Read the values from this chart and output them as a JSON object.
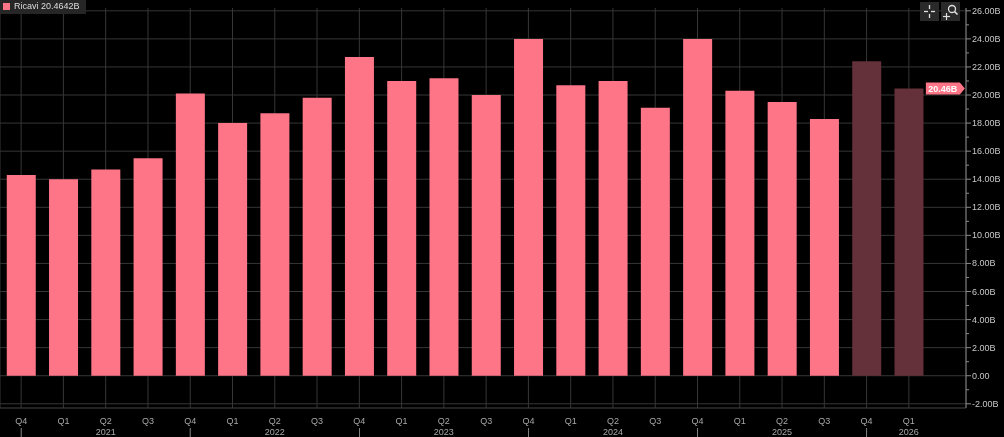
{
  "chart_data": {
    "type": "bar",
    "categories": [
      "Q4\n|",
      "Q1",
      "Q2\n2021",
      "Q3",
      "Q4\n|",
      "Q1",
      "Q2\n2022",
      "Q3",
      "Q4\n|",
      "Q1",
      "Q2\n2023",
      "Q3",
      "Q4\n|",
      "Q1",
      "Q2\n2024",
      "Q3",
      "Q4\n|",
      "Q1",
      "Q2\n2025",
      "Q3",
      "Q4\n|",
      "Q1\n2026"
    ],
    "series": [
      {
        "name": "Ricavi 20.4642B",
        "color": "#fd7587",
        "colors": [
          "#fd7587",
          "#fd7587",
          "#fd7587",
          "#fd7587",
          "#fd7587",
          "#fd7587",
          "#fd7587",
          "#fd7587",
          "#fd7587",
          "#fd7587",
          "#fd7587",
          "#fd7587",
          "#fd7587",
          "#fd7587",
          "#fd7587",
          "#fd7587",
          "#fd7587",
          "#fd7587",
          "#fd7587",
          "#fd7587",
          "#64303a",
          "#64303a"
        ],
        "values": [
          14.3,
          14.0,
          14.7,
          15.5,
          20.1,
          18.0,
          18.7,
          19.8,
          22.7,
          21.0,
          21.2,
          20.0,
          24.0,
          20.7,
          21.0,
          19.1,
          24.0,
          20.3,
          19.5,
          18.3,
          22.4,
          20.46
        ]
      }
    ],
    "ylim": [
      -2.3,
      26.2
    ],
    "yticks": [
      {
        "value": -2,
        "label": "-2.00B"
      },
      {
        "value": -1,
        "label": null
      },
      {
        "value": 0,
        "label": "0.00"
      },
      {
        "value": 1,
        "label": null
      },
      {
        "value": 2,
        "label": "2.00B"
      },
      {
        "value": 3,
        "label": null
      },
      {
        "value": 4,
        "label": "4.00B"
      },
      {
        "value": 5,
        "label": null
      },
      {
        "value": 6,
        "label": "6.00B"
      },
      {
        "value": 7,
        "label": null
      },
      {
        "value": 8,
        "label": "8.00B"
      },
      {
        "value": 9,
        "label": null
      },
      {
        "value": 10,
        "label": "10.00B"
      },
      {
        "value": 11,
        "label": null
      },
      {
        "value": 12,
        "label": "12.00B"
      },
      {
        "value": 13,
        "label": null
      },
      {
        "value": 14,
        "label": "14.00B"
      },
      {
        "value": 15,
        "label": null
      },
      {
        "value": 16,
        "label": "16.00B"
      },
      {
        "value": 17,
        "label": null
      },
      {
        "value": 18,
        "label": "18.00B"
      },
      {
        "value": 19,
        "label": null
      },
      {
        "value": 20,
        "label": "20.00B"
      },
      {
        "value": 21,
        "label": null
      },
      {
        "value": 22,
        "label": "22.00B"
      },
      {
        "value": 23,
        "label": null
      },
      {
        "value": 24,
        "label": "24.00B"
      },
      {
        "value": 25,
        "label": null
      },
      {
        "value": 26,
        "label": "26.00B"
      }
    ],
    "grid": true,
    "legend": "top left",
    "annotations": [
      {
        "text": "20.46B",
        "x": "Q1\n2026",
        "y": 20.46
      }
    ]
  }
}
